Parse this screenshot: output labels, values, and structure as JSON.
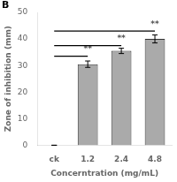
{
  "chart_data": {
    "type": "bar",
    "categories": [
      "ck",
      "1.2",
      "2.4",
      "4.8"
    ],
    "values": [
      0,
      30.5,
      35.5,
      40.0
    ],
    "errors": [
      0,
      1.2,
      1.0,
      1.5
    ],
    "color": "#aaaaaa",
    "xlabel": "Concerntration (mg/mL)",
    "ylabel": "Zone of inhibition (mm)",
    "ylim": [
      0,
      50
    ],
    "yticks": [
      0,
      10,
      20,
      30,
      40,
      50
    ],
    "grid": false,
    "panel_label": "B",
    "significance": [
      {
        "from": "ck",
        "to": "1.2",
        "y": 33.5,
        "label": "**",
        "label_x": "1.2",
        "label_y": 34.5
      },
      {
        "from": "ck",
        "to": "2.4",
        "y": 37.5,
        "label": "**",
        "label_x": "2.4",
        "label_y": 38.5
      },
      {
        "from": "ck",
        "to": "4.8",
        "y": 43.0,
        "label": "**",
        "label_x": "4.8",
        "label_y": 44.0
      }
    ]
  }
}
